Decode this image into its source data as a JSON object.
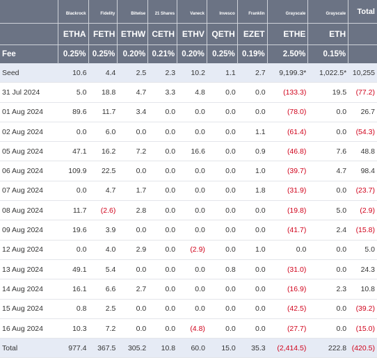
{
  "header": {
    "issuers": [
      "",
      "Blackrock",
      "Fidelity",
      "Bitwise",
      "21 Shares",
      "Vaneck",
      "Invesco",
      "Franklin",
      "Grayscale",
      "Grayscale",
      "Total"
    ],
    "tickers": [
      "",
      "ETHA",
      "FETH",
      "ETHW",
      "CETH",
      "ETHV",
      "QETH",
      "EZET",
      "ETHE",
      "ETH",
      ""
    ],
    "fees": [
      "Fee",
      "0.25%",
      "0.25%",
      "0.20%",
      "0.21%",
      "0.20%",
      "0.25%",
      "0.19%",
      "2.50%",
      "0.15%",
      ""
    ]
  },
  "rows": [
    [
      "Seed",
      "10.6",
      "4.4",
      "2.5",
      "2.3",
      "10.2",
      "1.1",
      "2.7",
      "9,199.3*",
      "1,022.5*",
      "10,255"
    ],
    [
      "31 Jul 2024",
      "5.0",
      "18.8",
      "4.7",
      "3.3",
      "4.8",
      "0.0",
      "0.0",
      "(133.3)",
      "19.5",
      "(77.2)"
    ],
    [
      "01 Aug 2024",
      "89.6",
      "11.7",
      "3.4",
      "0.0",
      "0.0",
      "0.0",
      "0.0",
      "(78.0)",
      "0.0",
      "26.7"
    ],
    [
      "02 Aug 2024",
      "0.0",
      "6.0",
      "0.0",
      "0.0",
      "0.0",
      "0.0",
      "1.1",
      "(61.4)",
      "0.0",
      "(54.3)"
    ],
    [
      "05 Aug 2024",
      "47.1",
      "16.2",
      "7.2",
      "0.0",
      "16.6",
      "0.0",
      "0.9",
      "(46.8)",
      "7.6",
      "48.8"
    ],
    [
      "06 Aug 2024",
      "109.9",
      "22.5",
      "0.0",
      "0.0",
      "0.0",
      "0.0",
      "1.0",
      "(39.7)",
      "4.7",
      "98.4"
    ],
    [
      "07 Aug 2024",
      "0.0",
      "4.7",
      "1.7",
      "0.0",
      "0.0",
      "0.0",
      "1.8",
      "(31.9)",
      "0.0",
      "(23.7)"
    ],
    [
      "08 Aug 2024",
      "11.7",
      "(2.6)",
      "2.8",
      "0.0",
      "0.0",
      "0.0",
      "0.0",
      "(19.8)",
      "5.0",
      "(2.9)"
    ],
    [
      "09 Aug 2024",
      "19.6",
      "3.9",
      "0.0",
      "0.0",
      "0.0",
      "0.0",
      "0.0",
      "(41.7)",
      "2.4",
      "(15.8)"
    ],
    [
      "12 Aug 2024",
      "0.0",
      "4.0",
      "2.9",
      "0.0",
      "(2.9)",
      "0.0",
      "1.0",
      "0.0",
      "0.0",
      "5.0"
    ],
    [
      "13 Aug 2024",
      "49.1",
      "5.4",
      "0.0",
      "0.0",
      "0.0",
      "0.8",
      "0.0",
      "(31.0)",
      "0.0",
      "24.3"
    ],
    [
      "14 Aug 2024",
      "16.1",
      "6.6",
      "2.7",
      "0.0",
      "0.0",
      "0.0",
      "0.0",
      "(16.9)",
      "2.3",
      "10.8"
    ],
    [
      "15 Aug 2024",
      "0.8",
      "2.5",
      "0.0",
      "0.0",
      "0.0",
      "0.0",
      "0.0",
      "(42.5)",
      "0.0",
      "(39.2)"
    ],
    [
      "16 Aug 2024",
      "10.3",
      "7.2",
      "0.0",
      "0.0",
      "(4.8)",
      "0.0",
      "0.0",
      "(27.7)",
      "0.0",
      "(15.0)"
    ]
  ],
  "total": [
    "Total",
    "977.4",
    "367.5",
    "305.2",
    "10.8",
    "60.0",
    "15.0",
    "35.3",
    "(2,414.5)",
    "222.8",
    "(420.5)"
  ],
  "colors": {
    "header_bg": "#6b7384",
    "highlight_row": "#e6ebf5",
    "negative": "#d0021b"
  }
}
